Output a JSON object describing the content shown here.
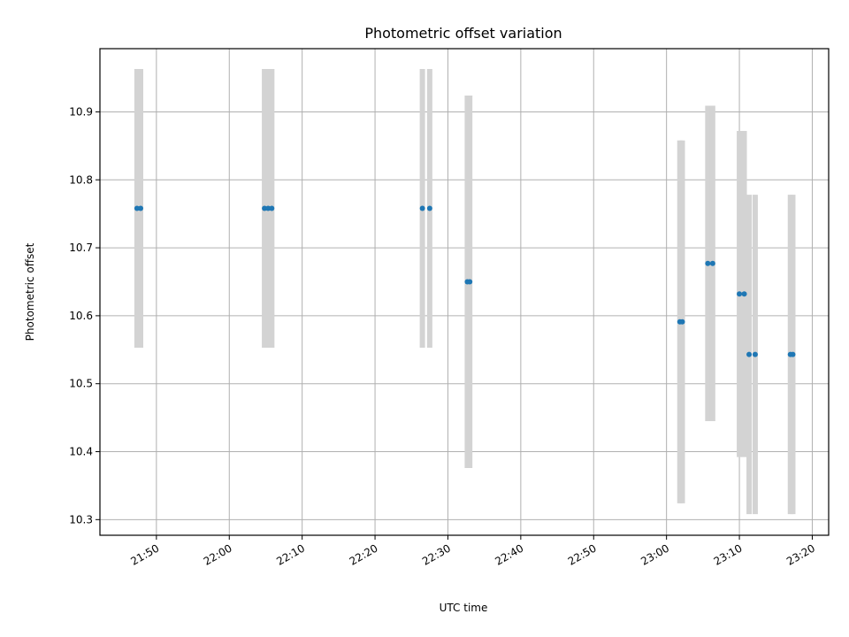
{
  "chart_data": {
    "type": "scatter",
    "title": "Photometric offset variation",
    "xlabel": "UTC time",
    "ylabel": "Photometric offset",
    "grid": true,
    "x_ticks": [
      "21:50",
      "22:00",
      "22:10",
      "22:20",
      "22:30",
      "22:40",
      "22:50",
      "23:00",
      "23:10",
      "23:20"
    ],
    "y_ticks": [
      10.3,
      10.4,
      10.5,
      10.6,
      10.7,
      10.8,
      10.9
    ],
    "xlim": [
      "21:42:15",
      "23:22:15"
    ],
    "ylim": [
      10.277,
      10.993
    ],
    "colors": {
      "points": "#1f77b4",
      "errorbars": "#d3d3d3",
      "grid": "#b0b0b0"
    },
    "points": [
      {
        "x": "21:47:20",
        "y": 10.758,
        "yerr": 0.205
      },
      {
        "x": "21:47:50",
        "y": 10.758,
        "yerr": 0.205
      },
      {
        "x": "22:04:50",
        "y": 10.758,
        "yerr": 0.205
      },
      {
        "x": "22:05:20",
        "y": 10.758,
        "yerr": 0.205
      },
      {
        "x": "22:05:50",
        "y": 10.758,
        "yerr": 0.205
      },
      {
        "x": "22:26:30",
        "y": 10.758,
        "yerr": 0.205
      },
      {
        "x": "22:27:30",
        "y": 10.758,
        "yerr": 0.205
      },
      {
        "x": "22:32:40",
        "y": 10.65,
        "yerr": 0.274
      },
      {
        "x": "22:33:00",
        "y": 10.65,
        "yerr": 0.274
      },
      {
        "x": "23:01:50",
        "y": 10.591,
        "yerr": 0.267
      },
      {
        "x": "23:02:10",
        "y": 10.591,
        "yerr": 0.267
      },
      {
        "x": "23:05:40",
        "y": 10.677,
        "yerr": 0.232
      },
      {
        "x": "23:06:20",
        "y": 10.677,
        "yerr": 0.232
      },
      {
        "x": "23:10:00",
        "y": 10.632,
        "yerr": 0.24
      },
      {
        "x": "23:10:40",
        "y": 10.632,
        "yerr": 0.24
      },
      {
        "x": "23:11:20",
        "y": 10.543,
        "yerr": 0.235
      },
      {
        "x": "23:12:10",
        "y": 10.543,
        "yerr": 0.235
      },
      {
        "x": "23:17:00",
        "y": 10.543,
        "yerr": 0.235
      },
      {
        "x": "23:17:20",
        "y": 10.543,
        "yerr": 0.235
      }
    ]
  }
}
